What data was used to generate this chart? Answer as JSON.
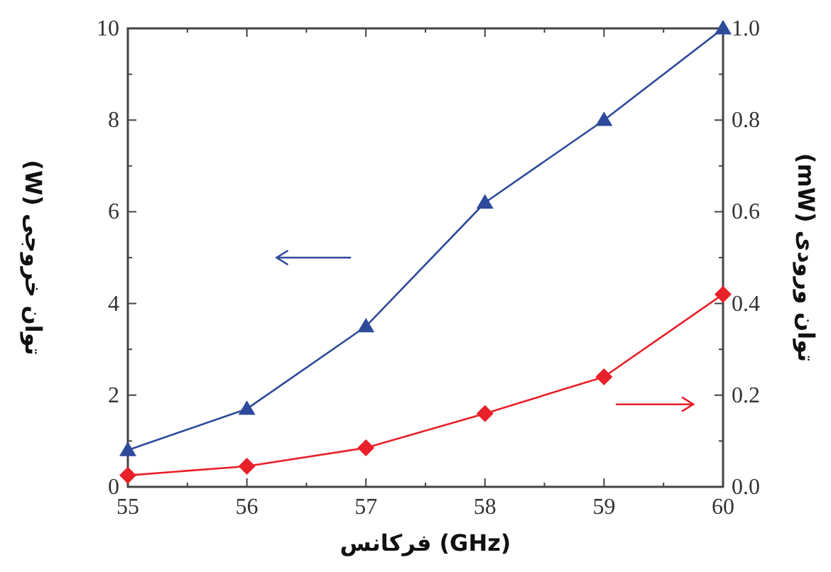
{
  "chart_data": {
    "type": "line",
    "xlabel": "فرکانس (GHz)",
    "ylabel": "توان خروجی (W)",
    "y2label": "توان ورودی (mW)",
    "x": [
      55,
      56,
      57,
      58,
      59,
      60
    ],
    "xlim": [
      55,
      60
    ],
    "xticks": [
      55,
      56,
      57,
      58,
      59,
      60
    ],
    "ylim": [
      0,
      10
    ],
    "yticks": [
      0,
      2,
      4,
      6,
      8,
      10
    ],
    "y2lim": [
      0,
      1
    ],
    "y2ticks": [
      {
        "value": 0,
        "label": "0.0"
      },
      {
        "value": 0.2,
        "label": "0.2"
      },
      {
        "value": 0.4,
        "label": "0.4"
      },
      {
        "value": 0.6,
        "label": "0.6"
      },
      {
        "value": 0.8,
        "label": "0.8"
      },
      {
        "value": 1,
        "label": "1.0"
      }
    ],
    "grid": false,
    "line_style": "solid",
    "series": [
      {
        "color": "#2e4a9a",
        "marker": "triangle",
        "values": [
          0.8,
          1.7,
          3.5,
          6.2,
          8.0,
          10.0
        ]
      },
      {
        "color": "#e8202a",
        "marker": "diamond",
        "axis": "y2",
        "values": [
          0.025,
          0.045,
          0.085,
          0.16,
          0.24,
          0.42
        ]
      }
    ]
  }
}
